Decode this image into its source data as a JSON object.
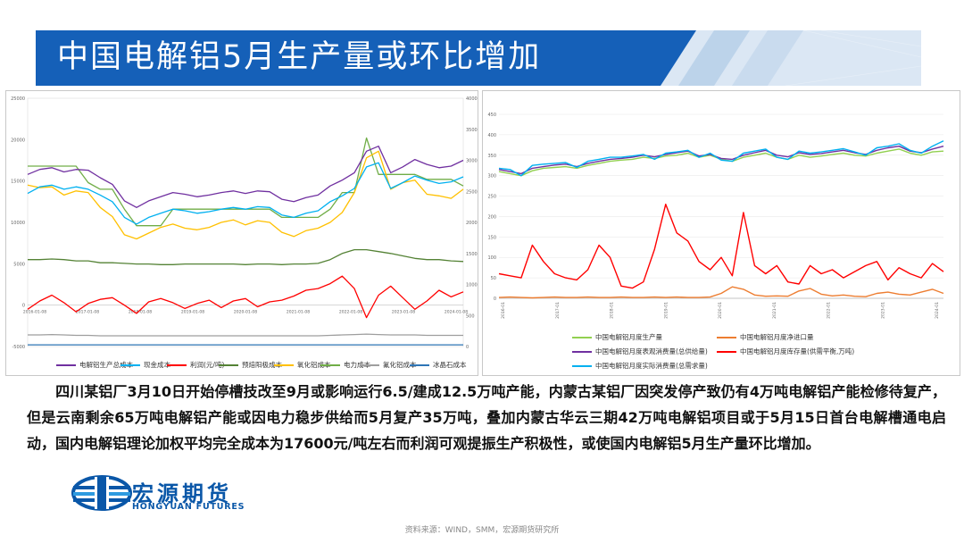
{
  "banner": {
    "title": "中国电解铝5月生产量或环比增加"
  },
  "left_chart": {
    "chart_data": {
      "type": "line",
      "x_labels": [
        "2016-01-08",
        "2017-01-08",
        "2018-01-08",
        "2019-01-08",
        "2020-01-08",
        "2021-01-08",
        "2022-01-08",
        "2023-01-08",
        "2024-01-08"
      ],
      "left_ticks": [
        "-5000",
        "0",
        "5000",
        "10000",
        "15000",
        "20000",
        "25000"
      ],
      "right_ticks": [
        "0",
        "500",
        "1000",
        "1500",
        "2000",
        "2500",
        "3000",
        "3500",
        "4000"
      ],
      "ylim_left": [
        -5000,
        25000
      ],
      "ylim_right": [
        0,
        4000
      ],
      "series": [
        {
          "name": "电解铝生产总成本",
          "color": "#7030a0",
          "axis": "left",
          "values": [
            15800,
            16400,
            16600,
            16100,
            16400,
            16300,
            15400,
            14600,
            12600,
            11800,
            12600,
            13100,
            13600,
            13400,
            13100,
            13300,
            13600,
            13800,
            13500,
            13800,
            13700,
            12800,
            12500,
            13000,
            13300,
            14400,
            15100,
            16000,
            18600,
            19200,
            16000,
            16700,
            17600,
            17000,
            16600,
            16800,
            17500
          ]
        },
        {
          "name": "现金成本",
          "color": "#00b0f0",
          "axis": "left",
          "values": [
            13500,
            14300,
            14500,
            14000,
            14300,
            14000,
            13300,
            12500,
            10600,
            9800,
            10600,
            11100,
            11600,
            11400,
            11100,
            11300,
            11600,
            11800,
            11600,
            11900,
            11800,
            10900,
            10600,
            11100,
            11400,
            12500,
            13200,
            14100,
            16700,
            17200,
            14100,
            14800,
            15600,
            15100,
            14700,
            14900,
            15500
          ]
        },
        {
          "name": "利润(元/吨)",
          "color": "#ff0000",
          "axis": "left",
          "values": [
            -500,
            500,
            1200,
            300,
            -800,
            200,
            700,
            900,
            0,
            -1000,
            400,
            800,
            300,
            -400,
            200,
            600,
            -300,
            500,
            800,
            -200,
            400,
            600,
            1100,
            1800,
            2000,
            2600,
            3500,
            2000,
            -1500,
            1200,
            2300,
            900,
            -500,
            500,
            1800,
            1000,
            1600
          ]
        },
        {
          "name": "预焙阳极成本",
          "color": "#548235",
          "axis": "right",
          "values": [
            1400,
            1400,
            1410,
            1400,
            1380,
            1380,
            1350,
            1350,
            1340,
            1330,
            1330,
            1320,
            1320,
            1330,
            1330,
            1330,
            1330,
            1330,
            1320,
            1330,
            1330,
            1320,
            1330,
            1330,
            1340,
            1400,
            1500,
            1560,
            1560,
            1530,
            1500,
            1460,
            1420,
            1400,
            1400,
            1380,
            1370
          ]
        },
        {
          "name": "氧化铝成本",
          "color": "#ffc000",
          "axis": "left",
          "values": [
            14500,
            14200,
            14300,
            13300,
            13800,
            13600,
            11800,
            10700,
            8500,
            8000,
            8700,
            9400,
            9800,
            9300,
            9100,
            9400,
            10000,
            10300,
            9700,
            10200,
            10000,
            8800,
            8300,
            9000,
            9300,
            10000,
            11200,
            13600,
            17800,
            18600,
            14000,
            14800,
            15100,
            13400,
            13200,
            12900,
            14000
          ]
        },
        {
          "name": "电力成本",
          "color": "#70ad47",
          "axis": "left",
          "values": [
            16800,
            16800,
            16800,
            16800,
            16800,
            14800,
            14000,
            14000,
            11600,
            9600,
            9600,
            9600,
            11600,
            11600,
            11600,
            11600,
            11600,
            11600,
            11600,
            11600,
            11600,
            10600,
            10600,
            10600,
            10600,
            11600,
            13600,
            13600,
            20200,
            15800,
            15800,
            15800,
            15800,
            15200,
            15200,
            15200,
            14400
          ]
        },
        {
          "name": "氟化铝成本",
          "color": "#9e9e9e",
          "axis": "left",
          "values": [
            -3600,
            -3600,
            -3550,
            -3600,
            -3650,
            -3650,
            -3700,
            -3700,
            -3700,
            -3700,
            -3700,
            -3700,
            -3700,
            -3700,
            -3700,
            -3700,
            -3700,
            -3700,
            -3700,
            -3700,
            -3700,
            -3700,
            -3700,
            -3700,
            -3700,
            -3650,
            -3600,
            -3550,
            -3500,
            -3550,
            -3600,
            -3600,
            -3600,
            -3650,
            -3650,
            -3650,
            -3650
          ]
        },
        {
          "name": "冰晶石成本",
          "color": "#2e75b6",
          "axis": "left",
          "values": [
            -4800,
            -4800,
            -4800,
            -4800,
            -4800,
            -4800,
            -4800,
            -4800,
            -4800,
            -4800,
            -4800,
            -4800,
            -4800,
            -4800,
            -4800,
            -4800,
            -4800,
            -4800,
            -4800,
            -4800,
            -4800,
            -4800,
            -4800,
            -4800,
            -4800,
            -4800,
            -4800,
            -4800,
            -4800,
            -4800,
            -4800,
            -4800,
            -4800,
            -4800,
            -4800,
            -4800,
            -4800
          ]
        }
      ],
      "legend_placement": "bottom"
    }
  },
  "right_chart": {
    "chart_data": {
      "type": "line",
      "y_ticks": [
        "0",
        "50",
        "100",
        "150",
        "200",
        "250",
        "300",
        "350",
        "400",
        "450"
      ],
      "ylim": [
        0,
        450
      ],
      "x_labels": [
        "2016-01",
        "2017-01",
        "2018-01",
        "2019-01",
        "2020-01",
        "2021-01",
        "2022-01",
        "2023-01",
        "2024-01"
      ],
      "series": [
        {
          "name": "中国电解铝月度生产量",
          "color": "#92d050",
          "values": [
            310,
            305,
            300,
            312,
            318,
            320,
            322,
            318,
            325,
            330,
            335,
            338,
            340,
            345,
            342,
            348,
            350,
            355,
            345,
            350,
            340,
            335,
            345,
            350,
            355,
            345,
            340,
            350,
            345,
            348,
            352,
            355,
            350,
            348,
            355,
            360,
            365,
            355,
            350,
            358,
            360
          ]
        },
        {
          "name": "中国电解铝月度净进口量",
          "color": "#ed7d31",
          "values": [
            2,
            3,
            2,
            1,
            2,
            3,
            2,
            2,
            3,
            2,
            2,
            3,
            2,
            2,
            3,
            2,
            3,
            2,
            2,
            3,
            12,
            28,
            22,
            8,
            5,
            6,
            5,
            18,
            24,
            10,
            6,
            8,
            5,
            4,
            12,
            15,
            10,
            8,
            15,
            22,
            12
          ]
        },
        {
          "name": "中国电解铝月度表观消费量(总供给量)",
          "color": "#7030a0",
          "values": [
            315,
            310,
            305,
            318,
            322,
            326,
            328,
            322,
            330,
            335,
            340,
            342,
            345,
            350,
            346,
            352,
            356,
            360,
            348,
            352,
            342,
            340,
            350,
            356,
            362,
            350,
            346,
            356,
            352,
            354,
            358,
            362,
            356,
            352,
            362,
            368,
            372,
            360,
            356,
            365,
            372
          ]
        },
        {
          "name": "中国电解铝月度库存量(供需平衡,万吨)",
          "color": "#ff0000",
          "values": [
            60,
            55,
            50,
            130,
            90,
            60,
            50,
            45,
            70,
            130,
            100,
            30,
            25,
            40,
            120,
            230,
            160,
            140,
            90,
            70,
            100,
            55,
            210,
            80,
            60,
            80,
            40,
            35,
            80,
            60,
            70,
            50,
            65,
            80,
            90,
            45,
            75,
            60,
            50,
            85,
            65
          ]
        },
        {
          "name": "中国电解铝月度实际消费量(总需求量)",
          "color": "#00b0f0",
          "values": [
            318,
            315,
            300,
            325,
            328,
            330,
            332,
            320,
            335,
            340,
            345,
            345,
            348,
            352,
            340,
            355,
            358,
            362,
            345,
            355,
            338,
            335,
            355,
            360,
            365,
            345,
            340,
            360,
            355,
            358,
            362,
            366,
            358,
            350,
            368,
            372,
            378,
            362,
            355,
            372,
            385
          ]
        }
      ],
      "legend_placement": "bottom"
    }
  },
  "paragraph": "四川某铝厂3月10日开始停槽技改至9月或影响运行6.5/建成12.5万吨产能，内蒙古某铝厂因突发停产致仍有4万吨电解铝产能检修待复产，但是云南剩余65万吨电解铝产能或因电力稳步供给而5月复产35万吨，叠加内蒙古华云三期42万吨电解铝项目或于5月15日首台电解槽通电启动，国内电解铝理论加权平均完全成本为17600元/吨左右而利润可观提振生产积极性，或使国内电解铝5月生产量环比增加。",
  "logo": {
    "cn": "宏源期货",
    "en": "HONGYUAN FUTURES",
    "colors": {
      "primary": "#0a57a8",
      "accent": "#2e9be0"
    }
  },
  "source": "资料来源：WIND，SMM，宏源期货研究所",
  "colors": {
    "banner": "#1560b8",
    "banner_accent": "#dbe7f4"
  }
}
